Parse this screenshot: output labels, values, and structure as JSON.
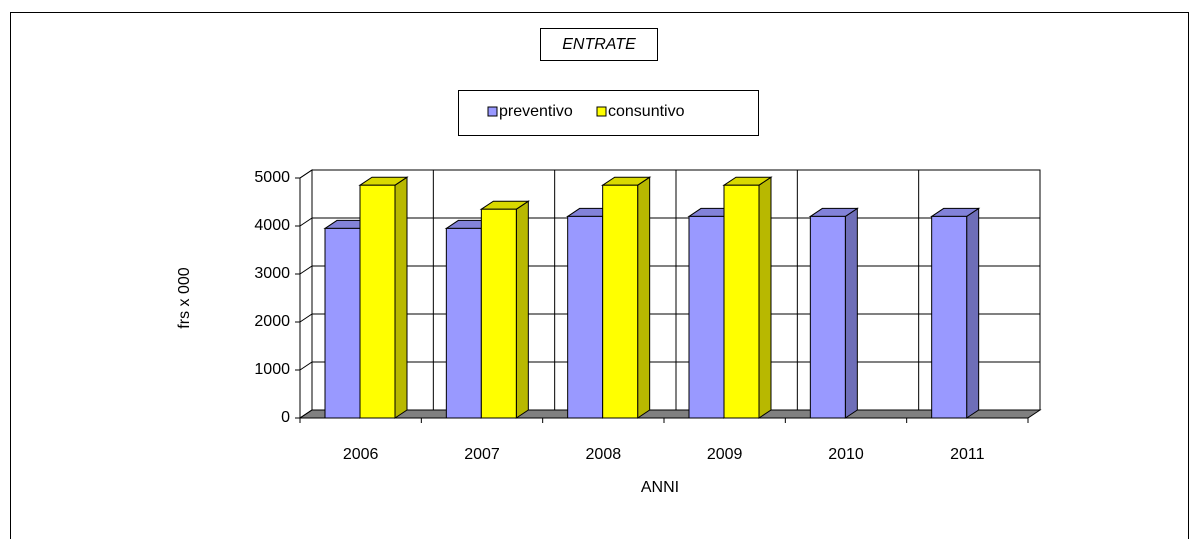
{
  "chart_data": {
    "type": "bar3d",
    "title": "ENTRATE",
    "categories": [
      "2006",
      "2007",
      "2008",
      "2009",
      "2010",
      "2011"
    ],
    "series": [
      {
        "name": "preventivo",
        "color": "#9999ff",
        "values": [
          3950,
          3950,
          4200,
          4200,
          4200,
          4200
        ]
      },
      {
        "name": "consuntivo",
        "color": "#ffff00",
        "values": [
          4850,
          4350,
          4850,
          4850,
          null,
          null
        ]
      }
    ],
    "xlabel": "ANNI",
    "ylabel": "frs x 000",
    "ylim": [
      0,
      5000
    ],
    "yticks": [
      0,
      1000,
      2000,
      3000,
      4000,
      5000
    ],
    "grid": true,
    "legend": "top"
  }
}
